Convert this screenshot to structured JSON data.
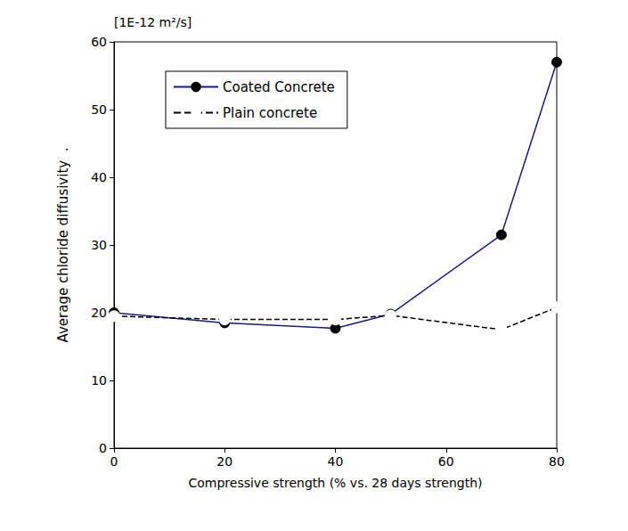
{
  "chart_data": {
    "type": "line",
    "x_label": "Compressive strength (% vs. 28 days strength)",
    "y_label": "Average chloride diffusivity  .",
    "annotations": [
      "[1E-12 m²/s]"
    ],
    "x": [
      0,
      20,
      40,
      50,
      70,
      80
    ],
    "series": [
      {
        "name": "Coated Concrete",
        "color": "#1a1a80",
        "marker": "circle",
        "line_style": "solid",
        "values": [
          20.0,
          18.5,
          17.7,
          19.8,
          31.5,
          57.0
        ]
      },
      {
        "name": "Plain concrete",
        "color": "#000000",
        "marker": "open_circle",
        "line_style": "dashed",
        "values": [
          19.5,
          19.0,
          19.0,
          19.6,
          17.5,
          20.8
        ]
      }
    ],
    "xlim": [
      0,
      80
    ],
    "xticks": [
      0,
      20,
      40,
      60,
      80
    ],
    "ylim": [
      0,
      60
    ],
    "yticks": [
      0,
      10,
      20,
      30,
      40,
      50,
      60
    ],
    "grid": false,
    "legend": "upper left",
    "data_labels": false
  }
}
